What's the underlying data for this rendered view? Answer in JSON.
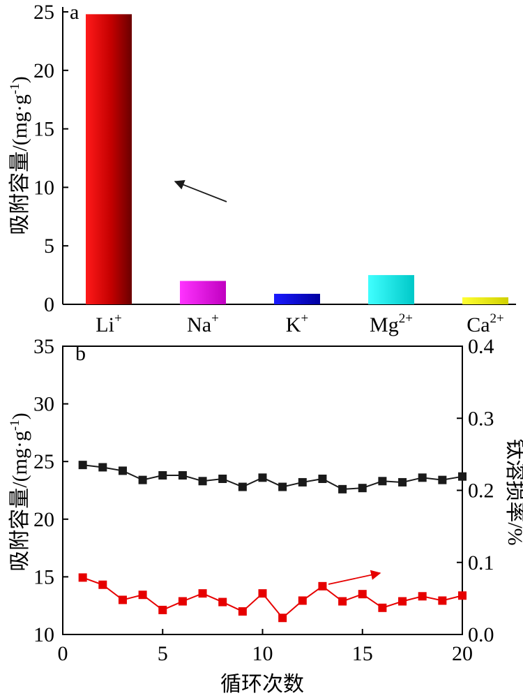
{
  "chart_data": [
    {
      "panel": "a",
      "type": "bar",
      "categories": [
        {
          "base": "Li",
          "sup": "+"
        },
        {
          "base": "Na",
          "sup": "+"
        },
        {
          "base": "K",
          "sup": "+"
        },
        {
          "base": "Mg",
          "sup": "2+"
        },
        {
          "base": "Ca",
          "sup": "2+"
        }
      ],
      "values": [
        24.8,
        2.0,
        0.9,
        2.5,
        0.6
      ],
      "colors": [
        "#d00000",
        "#e000e0",
        "#0000d0",
        "#00e0e0",
        "#e0e000"
      ],
      "ylabel": "吸附容量/(mg·g-1)",
      "ylim": [
        0,
        25
      ],
      "yticks": [
        0,
        5,
        10,
        15,
        20,
        25
      ]
    },
    {
      "panel": "b",
      "type": "line",
      "x": [
        1,
        2,
        3,
        4,
        5,
        6,
        7,
        8,
        9,
        10,
        11,
        12,
        13,
        14,
        15,
        16,
        17,
        18,
        19,
        20
      ],
      "xlabel": "循环次数",
      "xlim": [
        0,
        20
      ],
      "xticks": [
        0,
        5,
        10,
        15,
        20
      ],
      "ylabel_left": "吸附容量/(mg·g-1)",
      "ylim_left": [
        10,
        35
      ],
      "yticks_left": [
        10,
        15,
        20,
        25,
        30,
        35
      ],
      "ylabel_right": "钛溶损率/%",
      "ylim_right": [
        0.0,
        0.4
      ],
      "yticks_right": [
        "0.0",
        "0.1",
        "0.2",
        "0.3",
        "0.4"
      ],
      "series": [
        {
          "axis": "left",
          "color": "#1a1a1a",
          "marker": "square",
          "values": [
            24.7,
            24.5,
            24.2,
            23.4,
            23.8,
            23.8,
            23.3,
            23.5,
            22.8,
            23.6,
            22.8,
            23.2,
            23.5,
            22.6,
            22.7,
            23.3,
            23.2,
            23.6,
            23.4,
            23.7
          ]
        },
        {
          "axis": "right",
          "color": "#e60000",
          "marker": "square",
          "values": [
            0.079,
            0.069,
            0.048,
            0.055,
            0.034,
            0.046,
            0.057,
            0.045,
            0.032,
            0.057,
            0.023,
            0.047,
            0.067,
            0.046,
            0.056,
            0.037,
            0.046,
            0.053,
            0.047,
            0.054
          ]
        }
      ]
    }
  ]
}
